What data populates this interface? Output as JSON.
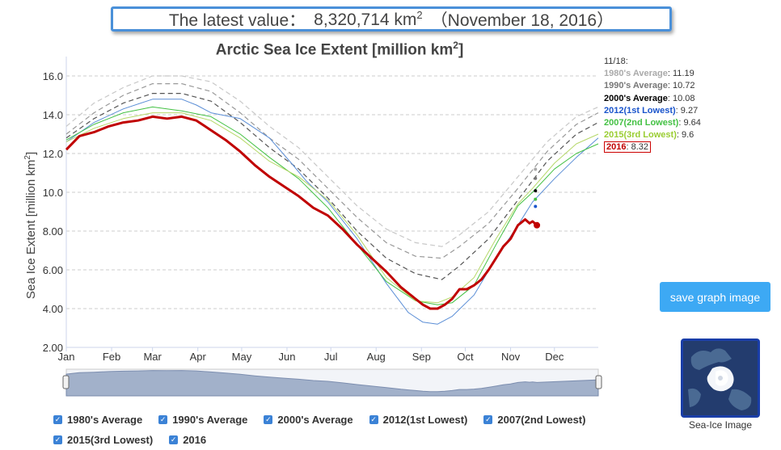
{
  "latest": {
    "label": "The latest value：",
    "value": "8,320,714 km",
    "unit_exp": "2",
    "date": "（November 18, 2016）"
  },
  "chart_data": {
    "type": "line",
    "title": "Arctic Sea Ice Extent [million km",
    "title_exp": "2",
    "title_end": "]",
    "ylabel": "Sea Ice Extent [million km",
    "ylabel_exp": "2",
    "ylabel_end": "]",
    "ylim": [
      2,
      17
    ],
    "yticks": [
      "2.00",
      "4.00",
      "6.00",
      "8.00",
      "10.0",
      "12.0",
      "14.0",
      "16.0"
    ],
    "xlim": [
      1,
      365
    ],
    "months": [
      {
        "label": "Jan",
        "day": 1
      },
      {
        "label": "Feb",
        "day": 32
      },
      {
        "label": "Mar",
        "day": 60
      },
      {
        "label": "Apr",
        "day": 91
      },
      {
        "label": "May",
        "day": 121
      },
      {
        "label": "Jun",
        "day": 152
      },
      {
        "label": "Jul",
        "day": 182
      },
      {
        "label": "Aug",
        "day": 213
      },
      {
        "label": "Sep",
        "day": 244
      },
      {
        "label": "Oct",
        "day": 274
      },
      {
        "label": "Nov",
        "day": 305
      },
      {
        "label": "Dec",
        "day": 335
      }
    ],
    "series": [
      {
        "name": "1980's Average",
        "color": "#c8c8c8",
        "dash": "6,4",
        "width": 1.2,
        "x": [
          1,
          20,
          40,
          60,
          80,
          100,
          120,
          140,
          160,
          180,
          200,
          220,
          240,
          258,
          270,
          290,
          310,
          330,
          350,
          365
        ],
        "y": [
          13.4,
          14.6,
          15.4,
          16.0,
          16.0,
          15.7,
          14.7,
          13.4,
          12.3,
          10.8,
          9.3,
          8.1,
          7.4,
          7.2,
          7.8,
          9.0,
          10.8,
          12.6,
          13.9,
          14.4
        ]
      },
      {
        "name": "1990's Average",
        "color": "#999999",
        "dash": "6,4",
        "width": 1.2,
        "x": [
          1,
          20,
          40,
          60,
          80,
          100,
          120,
          140,
          160,
          180,
          200,
          220,
          240,
          258,
          270,
          290,
          310,
          330,
          350,
          365
        ],
        "y": [
          13.0,
          14.1,
          15.0,
          15.6,
          15.6,
          15.2,
          14.1,
          12.8,
          11.7,
          10.2,
          8.7,
          7.4,
          6.7,
          6.6,
          7.2,
          8.4,
          10.2,
          12.1,
          13.5,
          14.1
        ]
      },
      {
        "name": "2000's Average",
        "color": "#555555",
        "dash": "6,4",
        "width": 1.2,
        "x": [
          1,
          20,
          40,
          60,
          80,
          100,
          120,
          140,
          160,
          180,
          200,
          220,
          240,
          258,
          270,
          290,
          310,
          330,
          350,
          365
        ],
        "y": [
          12.8,
          13.8,
          14.6,
          15.1,
          15.1,
          14.7,
          13.6,
          12.3,
          11.2,
          9.7,
          8.0,
          6.6,
          5.8,
          5.5,
          6.2,
          7.6,
          9.6,
          11.6,
          13.0,
          13.6
        ]
      },
      {
        "name": "2012(1st Lowest)",
        "color": "#5b8ed6",
        "dash": "",
        "width": 1,
        "x": [
          1,
          20,
          40,
          60,
          80,
          90,
          100,
          120,
          140,
          155,
          165,
          180,
          200,
          220,
          235,
          245,
          255,
          265,
          280,
          295,
          310,
          320,
          335,
          350,
          365
        ],
        "y": [
          12.6,
          13.6,
          14.3,
          14.8,
          14.8,
          14.5,
          14.1,
          13.8,
          12.8,
          11.5,
          10.6,
          9.5,
          7.6,
          5.3,
          3.8,
          3.3,
          3.2,
          3.6,
          4.7,
          6.6,
          8.3,
          9.5,
          10.7,
          11.8,
          12.8
        ]
      },
      {
        "name": "2007(2nd Lowest)",
        "color": "#44c144",
        "dash": "",
        "width": 1,
        "x": [
          1,
          20,
          40,
          60,
          80,
          100,
          120,
          140,
          160,
          180,
          200,
          220,
          240,
          255,
          265,
          280,
          295,
          310,
          320,
          335,
          350,
          365
        ],
        "y": [
          12.7,
          13.5,
          14.1,
          14.4,
          14.2,
          13.9,
          13.0,
          11.8,
          10.7,
          9.2,
          7.3,
          5.4,
          4.4,
          4.2,
          4.3,
          5.2,
          7.3,
          9.3,
          10.0,
          11.2,
          12.0,
          12.5
        ]
      },
      {
        "name": "2015(3rd Lowest)",
        "color": "#b6d86a",
        "dash": "",
        "width": 1,
        "x": [
          1,
          20,
          40,
          60,
          80,
          100,
          120,
          140,
          160,
          180,
          200,
          220,
          240,
          255,
          265,
          280,
          295,
          310,
          320,
          335,
          350,
          365
        ],
        "y": [
          12.6,
          13.3,
          13.8,
          14.1,
          14.1,
          13.7,
          12.8,
          11.6,
          10.8,
          9.6,
          7.8,
          5.6,
          4.4,
          4.3,
          4.6,
          5.6,
          7.6,
          9.4,
          10.2,
          11.5,
          12.5,
          13.0
        ]
      },
      {
        "name": "2016",
        "color": "#c00000",
        "dash": "",
        "width": 3,
        "x": [
          1,
          10,
          20,
          30,
          40,
          50,
          60,
          70,
          80,
          90,
          100,
          110,
          120,
          130,
          140,
          150,
          160,
          170,
          180,
          190,
          200,
          210,
          220,
          230,
          240,
          245,
          250,
          255,
          260,
          265,
          270,
          275,
          280,
          285,
          290,
          295,
          300,
          305,
          310,
          315,
          318,
          320,
          323
        ],
        "y": [
          12.2,
          12.9,
          13.1,
          13.4,
          13.6,
          13.7,
          13.9,
          13.8,
          13.9,
          13.7,
          13.2,
          12.7,
          12.1,
          11.4,
          10.8,
          10.3,
          9.8,
          9.2,
          8.8,
          8.1,
          7.3,
          6.6,
          5.9,
          5.1,
          4.5,
          4.2,
          4.0,
          4.0,
          4.2,
          4.5,
          5.0,
          5.0,
          5.2,
          5.5,
          6.0,
          6.6,
          7.2,
          7.6,
          8.3,
          8.6,
          8.4,
          8.5,
          8.3
        ]
      }
    ],
    "markers": [
      {
        "name": "1980's Average",
        "value": 11.19,
        "color": "#aaaaaa"
      },
      {
        "name": "1990's Average",
        "value": 10.72,
        "color": "#777777"
      },
      {
        "name": "2000's Average",
        "value": 10.08,
        "color": "#000000"
      },
      {
        "name": "2007(2nd Lowest)",
        "value": 9.64,
        "color": "#44c144"
      },
      {
        "name": "2012(1st Lowest)",
        "value": 9.27,
        "color": "#1a55cc"
      }
    ],
    "marker_day": 322
  },
  "side_legend": {
    "date": "11/18:",
    "entries": [
      {
        "name": "1980's Average",
        "sep": ": ",
        "value": "11.19",
        "color": "#aaaaaa",
        "boxed": false
      },
      {
        "name": "1990's Average",
        "sep": ": ",
        "value": "10.72",
        "color": "#777777",
        "boxed": false
      },
      {
        "name": "2000's Average",
        "sep": ": ",
        "value": "10.08",
        "color": "#000000",
        "boxed": false
      },
      {
        "name": "2012(1st Lowest)",
        "sep": ": ",
        "value": "9.27",
        "color": "#1a55cc",
        "boxed": false
      },
      {
        "name": "2007(2nd Lowest)",
        "sep": ": ",
        "value": "9.64",
        "color": "#44c144",
        "boxed": false
      },
      {
        "name": "2015(3rd Lowest)",
        "sep": ": ",
        "value": "9.6",
        "color": "#9acd32",
        "boxed": false
      },
      {
        "name": "2016",
        "sep": ": ",
        "value": "8.32",
        "color": "#c00000",
        "boxed": true
      }
    ]
  },
  "save_button": "save graph image",
  "thumbnail_caption": "Sea-Ice Image",
  "legend": {
    "row1": [
      "1980's Average",
      "1990's Average",
      "2000's Average",
      "2012(1st Lowest)",
      "2007(2nd Lowest)"
    ],
    "row2": [
      "2015(3rd Lowest)",
      "2016"
    ]
  }
}
